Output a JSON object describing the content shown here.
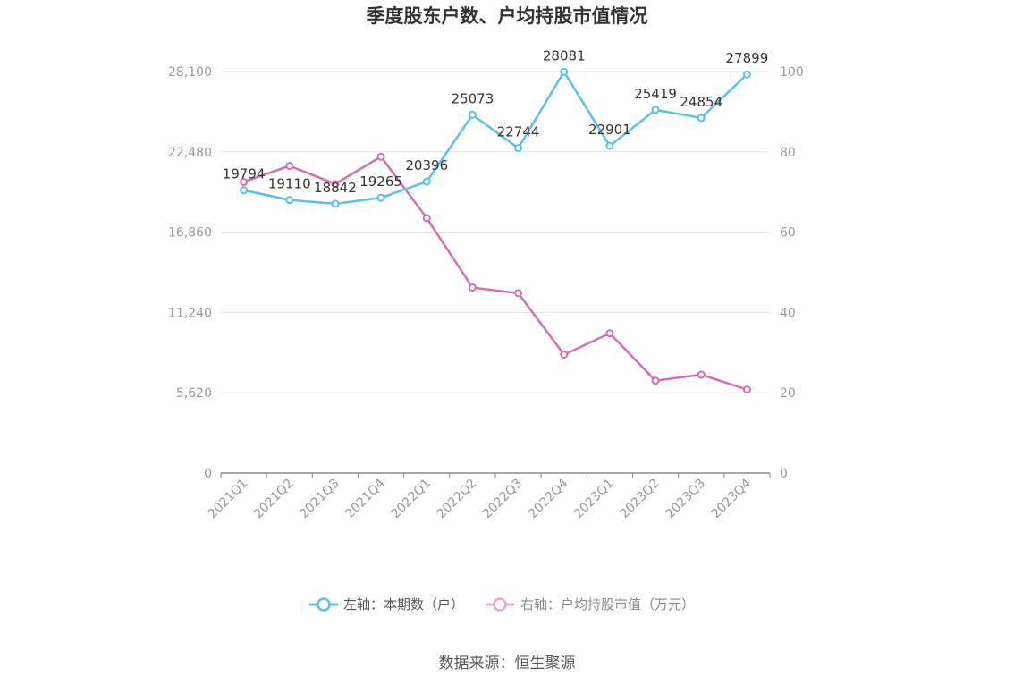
{
  "chart_data": {
    "type": "line",
    "title": "季度股东户数、户均持股市值情况",
    "categories": [
      "2021Q1",
      "2021Q2",
      "2021Q3",
      "2021Q4",
      "2022Q1",
      "2022Q2",
      "2022Q3",
      "2022Q4",
      "2023Q1",
      "2023Q2",
      "2023Q3",
      "2023Q4"
    ],
    "y_left": {
      "ticks": [
        "0",
        "5,620",
        "11,240",
        "16,860",
        "22,480",
        "28,100"
      ],
      "ylim": [
        0,
        28100
      ]
    },
    "y_right": {
      "ticks": [
        "0",
        "20",
        "40",
        "60",
        "80",
        "100"
      ],
      "ylim": [
        0,
        100
      ]
    },
    "grid": true,
    "legend_position": "bottom",
    "series": [
      {
        "name": "左轴：本期数（户）",
        "axis": "left",
        "color": "#5bc0eb",
        "values": [
          19794,
          19110,
          18842,
          19265,
          20396,
          25073,
          22744,
          28081,
          22901,
          25419,
          24854,
          27899
        ],
        "labels": [
          "19794",
          "19110",
          "18842",
          "19265",
          "20396",
          "25073",
          "22744",
          "28081",
          "22901",
          "25419",
          "24854",
          "27899"
        ]
      },
      {
        "name": "右轴：户均持股市值（万元）",
        "axis": "right",
        "color": "#d46fb2",
        "values": [
          72.5,
          76.5,
          72.0,
          78.8,
          63.5,
          46.2,
          44.8,
          29.5,
          34.8,
          23.0,
          24.5,
          20.8
        ]
      }
    ],
    "source": "数据来源：恒生聚源"
  }
}
